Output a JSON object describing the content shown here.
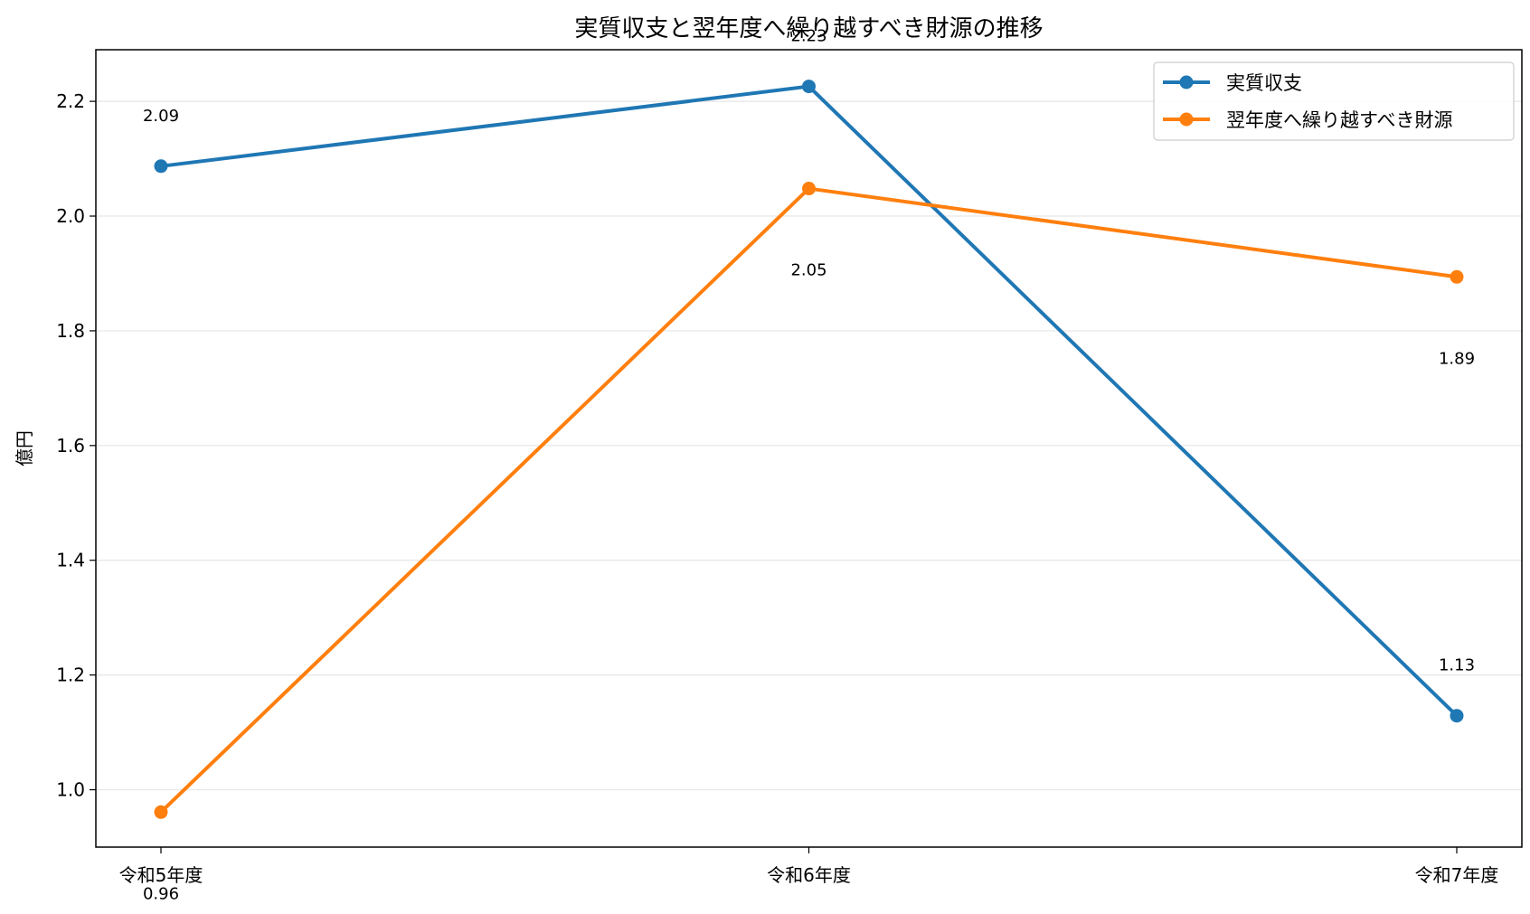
{
  "chart_data": {
    "type": "line",
    "title": "実質収支と翌年度へ繰り越すべき財源の推移",
    "xlabel": "",
    "ylabel": "億円",
    "categories": [
      "令和5年度",
      "令和6年度",
      "令和7年度"
    ],
    "ylim": [
      0.9,
      2.29
    ],
    "yticks": [
      1.0,
      1.2,
      1.4,
      1.6,
      1.8,
      2.0,
      2.2
    ],
    "ytick_labels": [
      "1.0",
      "1.2",
      "1.4",
      "1.6",
      "1.8",
      "2.0",
      "2.2"
    ],
    "grid": "horizontal",
    "legend_position": "top-right",
    "series": [
      {
        "name": "実質収支",
        "color": "#1f77b4",
        "values": [
          2.087,
          2.226,
          1.129
        ],
        "labels": [
          "2.09",
          "2.23",
          "1.13"
        ],
        "label_position": "above"
      },
      {
        "name": "翌年度へ繰り越すべき財源",
        "color": "#ff7f0e",
        "values": [
          0.961,
          2.048,
          1.894
        ],
        "labels": [
          "0.96",
          "2.05",
          "1.89"
        ],
        "label_position": "below"
      }
    ]
  }
}
